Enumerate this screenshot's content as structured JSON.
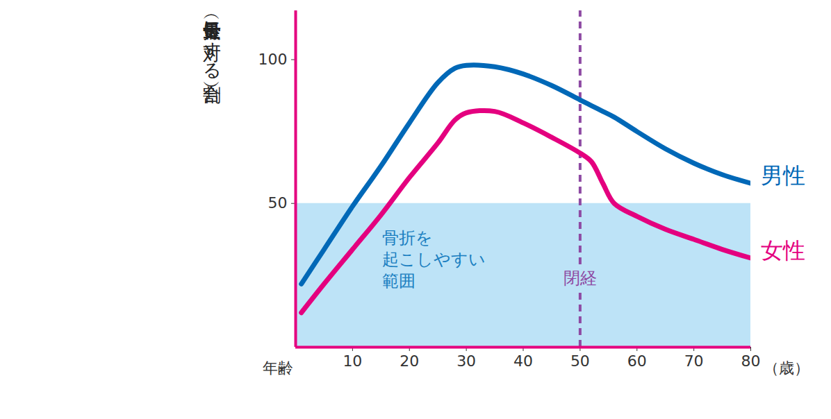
{
  "chart_data": {
    "type": "line",
    "x_label": "年齢",
    "x_unit": "（歳）",
    "y_label": "骨量（最大骨量に対する割合）",
    "xlim": [
      0,
      80
    ],
    "xticks": [
      10,
      20,
      30,
      40,
      50,
      60,
      70,
      80
    ],
    "ylim": [
      0,
      117
    ],
    "yticks": [
      50,
      100
    ],
    "grid": false,
    "x": [
      1,
      5,
      10,
      15,
      20,
      25,
      28,
      30,
      35,
      40,
      45,
      50,
      52,
      54,
      56,
      60,
      65,
      70,
      75,
      80
    ],
    "series": [
      {
        "name": "男性",
        "color": "#0068b7",
        "values": [
          22,
          34,
          49,
          63,
          78,
          92,
          97,
          98,
          97.5,
          95,
          91,
          86,
          84,
          82,
          80,
          75,
          69,
          64,
          60,
          57
        ]
      },
      {
        "name": "女性",
        "color": "#e4007f",
        "values": [
          12,
          22,
          34,
          46,
          59,
          71,
          79,
          81.5,
          82,
          78,
          73,
          67.5,
          64.5,
          57,
          50,
          45.5,
          41,
          37.5,
          34,
          31
        ]
      }
    ],
    "shaded_range": {
      "y0": 0,
      "y1": 50,
      "color": "#bde3f7",
      "label": "骨折を\n起こしやすい\n範囲"
    },
    "vline": {
      "x": 50,
      "label": "閉経",
      "color": "#8e4aa3",
      "line_style": "dashed"
    }
  }
}
